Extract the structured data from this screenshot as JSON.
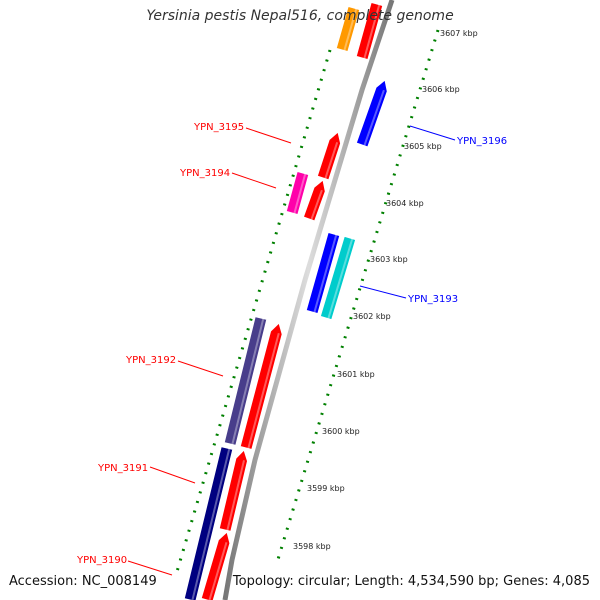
{
  "title": "Yersinia pestis Nepal516, complete genome",
  "footer": {
    "accession": "Accession: NC_008149",
    "topology": "Topology: circular; Length: 4,534,590 bp; Genes: 4,085"
  },
  "colors": {
    "red": "#ff0000",
    "blue": "#0000ff",
    "navy": "#000080",
    "cyan": "#00cccc",
    "magenta": "#ff00aa",
    "orange": "#ff9900",
    "slate": "#483d8b",
    "backbone": "#888888",
    "ticks": "#008000"
  },
  "ruler_ticks": [
    {
      "label": "3598 kbp"
    },
    {
      "label": "3599 kbp"
    },
    {
      "label": "3600 kbp"
    },
    {
      "label": "3601 kbp"
    },
    {
      "label": "3602 kbp"
    },
    {
      "label": "3603 kbp"
    },
    {
      "label": "3604 kbp"
    },
    {
      "label": "3605 kbp"
    },
    {
      "label": "3606 kbp"
    },
    {
      "label": "3607 kbp"
    }
  ],
  "gene_labels": [
    {
      "name": "YPN_3195",
      "color": "red"
    },
    {
      "name": "YPN_3194",
      "color": "red"
    },
    {
      "name": "YPN_3192",
      "color": "red"
    },
    {
      "name": "YPN_3191",
      "color": "red"
    },
    {
      "name": "YPN_3190",
      "color": "red"
    },
    {
      "name": "YPN_3196",
      "color": "blue"
    },
    {
      "name": "YPN_3193",
      "color": "blue"
    }
  ]
}
